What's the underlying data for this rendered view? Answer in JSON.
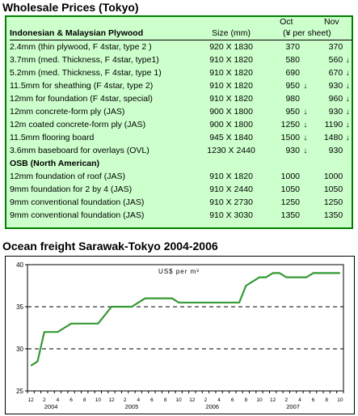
{
  "wholesale": {
    "title": "Wholesale Prices (Tokyo)",
    "header": {
      "section": "Indonesian & Malaysian Plywood",
      "size_label": "Size (mm)",
      "oct_label": "Oct",
      "nov_label": "Nov",
      "unit_label": "(¥ per sheet)"
    },
    "rows": [
      {
        "desc": "2.4mm  (thin plywood, F 4star, type 2 )",
        "size": "920 X 1830",
        "oct": "370",
        "oct_arrow": "",
        "nov": "370",
        "nov_arrow": ""
      },
      {
        "desc": "3.7mm  (med. Thickness,  F 4star, type1)",
        "size": "910 X 1820",
        "oct": "580",
        "oct_arrow": "",
        "nov": "560",
        "nov_arrow": "↓"
      },
      {
        "desc": "5.2mm  (med. Thickness, F 4star, type 1)",
        "size": "910 X 1820",
        "oct": "690",
        "oct_arrow": "",
        "nov": "670",
        "nov_arrow": "↓"
      },
      {
        "desc": "11.5mm  for sheathing (F 4star, type 2)",
        "size": "910 X 1820",
        "oct": "950",
        "oct_arrow": "↓",
        "nov": "930",
        "nov_arrow": "↓"
      },
      {
        "desc": "12mm for foundation (F 4star, special)",
        "size": "910 X 1820",
        "oct": "980",
        "oct_arrow": "",
        "nov": "960",
        "nov_arrow": "↓"
      },
      {
        "desc": "12mm concrete-form ply (JAS)",
        "size": "900 X 1800",
        "oct": "950",
        "oct_arrow": "↓",
        "nov": "930",
        "nov_arrow": "↓"
      },
      {
        "desc": "12m coated concrete-form ply (JAS)",
        "size": "900 X 1800",
        "oct": "1250",
        "oct_arrow": "↓",
        "nov": "1190",
        "nov_arrow": "↓"
      },
      {
        "desc": "11.5mm flooring board",
        "size": "945 X 1840",
        "oct": "1500",
        "oct_arrow": "↓",
        "nov": "1480",
        "nov_arrow": "↓"
      },
      {
        "desc": "3.6mm baseboard for overlays (OVL)",
        "size": "1230 X 2440",
        "oct": "930",
        "oct_arrow": "↓",
        "nov": "930",
        "nov_arrow": ""
      }
    ],
    "osb_section": "OSB (North American)",
    "osb_rows": [
      {
        "desc": "12mm foundation of roof (JAS)",
        "size": "910 X 1820",
        "oct": "1000",
        "nov": "1000"
      },
      {
        "desc": "9mm foundation for 2 by 4 (JAS)",
        "size": "910 X 2440",
        "oct": "1050",
        "nov": "1050"
      },
      {
        "desc": "9mm conventional foundation (JAS)",
        "size": "910 X 2730",
        "oct": "1250",
        "nov": "1250"
      },
      {
        "desc": "9mm conventional foundation (JAS)",
        "size": "910 X 3030",
        "oct": "1350",
        "nov": "1350"
      }
    ],
    "colors": {
      "box_bg": "#ccffcc",
      "box_border": "#008000"
    }
  },
  "freight": {
    "title": "Ocean freight Sarawak-Tokyo 2004-2006"
  },
  "chart_data": {
    "type": "line",
    "title": "",
    "unit_label": "US$ per m³",
    "xlabel": "",
    "ylabel": "",
    "ylim": [
      25,
      40
    ],
    "yticks": [
      25,
      30,
      35,
      40
    ],
    "month_ticks": [
      "12",
      "2",
      "4",
      "6",
      "8",
      "10",
      "12",
      "2",
      "4",
      "6",
      "8",
      "10",
      "12",
      "2",
      "4",
      "6",
      "8",
      "10",
      "12",
      "2",
      "4",
      "6",
      "8",
      "10"
    ],
    "year_labels": [
      {
        "label": "2004",
        "month_index": 3
      },
      {
        "label": "2005",
        "month_index": 15
      },
      {
        "label": "2006",
        "month_index": 27
      },
      {
        "label": "2007",
        "month_index": 39
      }
    ],
    "month_count": 47,
    "grid": {
      "dashed_y": [
        30,
        35
      ]
    },
    "series": [
      {
        "color": "#339933",
        "x": [
          0,
          1,
          2,
          3,
          4,
          5,
          6,
          7,
          8,
          9,
          10,
          11,
          12,
          13,
          14,
          15,
          16,
          17,
          18,
          19,
          20,
          21,
          22,
          23,
          24,
          25,
          26,
          27,
          28,
          29,
          30,
          31,
          32,
          33,
          34,
          35,
          36,
          37,
          38,
          39,
          40,
          41,
          42,
          43,
          44,
          45,
          46
        ],
        "y": [
          28,
          28.5,
          32,
          32,
          32,
          32.5,
          33,
          33,
          33,
          33,
          33,
          34,
          35,
          35,
          35,
          35,
          35.5,
          36,
          36,
          36,
          36,
          36,
          35.5,
          35.5,
          35.5,
          35.5,
          35.5,
          35.5,
          35.5,
          35.5,
          35.5,
          35.5,
          37.5,
          38,
          38.5,
          38.5,
          39,
          39,
          38.5,
          38.5,
          38.5,
          38.5,
          39,
          39,
          39,
          39,
          39
        ]
      }
    ]
  }
}
